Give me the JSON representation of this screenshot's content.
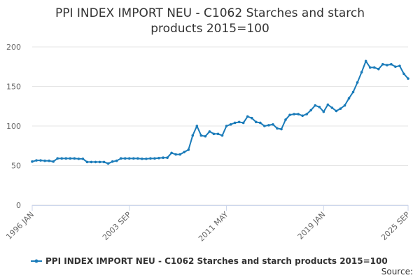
{
  "chart_data": {
    "type": "line",
    "title": "PPI INDEX IMPORT NEU - C1062 Starches and starch products 2015=100",
    "categories": [
      "1996 JAN",
      null,
      null,
      null,
      null,
      null,
      null,
      null,
      null,
      null,
      null,
      null,
      null,
      null,
      null,
      null,
      null,
      null,
      null,
      null,
      null,
      null,
      null,
      "2003 SEP",
      null,
      null,
      null,
      null,
      null,
      null,
      null,
      null,
      null,
      null,
      null,
      null,
      null,
      null,
      null,
      null,
      null,
      null,
      null,
      null,
      null,
      null,
      "2011 MAY",
      null,
      null,
      null,
      null,
      null,
      null,
      null,
      null,
      null,
      null,
      null,
      null,
      null,
      null,
      null,
      null,
      null,
      null,
      null,
      null,
      null,
      null,
      "2019 JAN",
      null,
      null,
      null,
      null,
      null,
      null,
      null,
      null,
      null,
      null,
      null,
      null,
      null,
      null,
      null,
      null,
      null,
      null,
      null,
      "2025 SEP"
    ],
    "series": [
      {
        "name": "PPI INDEX IMPORT NEU - C1062 Starches and starch products 2015=100",
        "color": "#1a7bb9",
        "values": [
          55,
          56.5,
          56.5,
          56,
          56,
          55,
          59,
          59,
          59,
          59,
          59,
          58.5,
          58.5,
          54.5,
          54.5,
          54.5,
          54.5,
          54.5,
          52.5,
          55,
          56,
          59,
          59,
          59,
          59,
          59,
          58.5,
          58.5,
          59,
          59,
          59.5,
          60,
          60,
          66,
          64,
          64,
          67,
          70,
          88,
          100,
          88,
          87,
          93,
          90,
          90,
          88,
          100,
          102,
          104,
          105,
          104,
          112,
          110,
          105,
          104,
          100,
          101,
          102,
          97,
          96,
          108,
          114,
          115,
          115,
          113,
          115,
          120,
          126,
          124,
          118,
          127,
          123,
          119,
          122,
          126,
          135,
          143,
          155,
          168,
          182,
          174,
          174,
          172,
          178,
          177,
          178,
          175,
          176,
          166,
          160
        ]
      }
    ],
    "ylim": [
      0,
      200
    ],
    "yticks": [
      0,
      50,
      100,
      150,
      200
    ],
    "grid": true,
    "legend": "bottom",
    "source": "Source:"
  }
}
